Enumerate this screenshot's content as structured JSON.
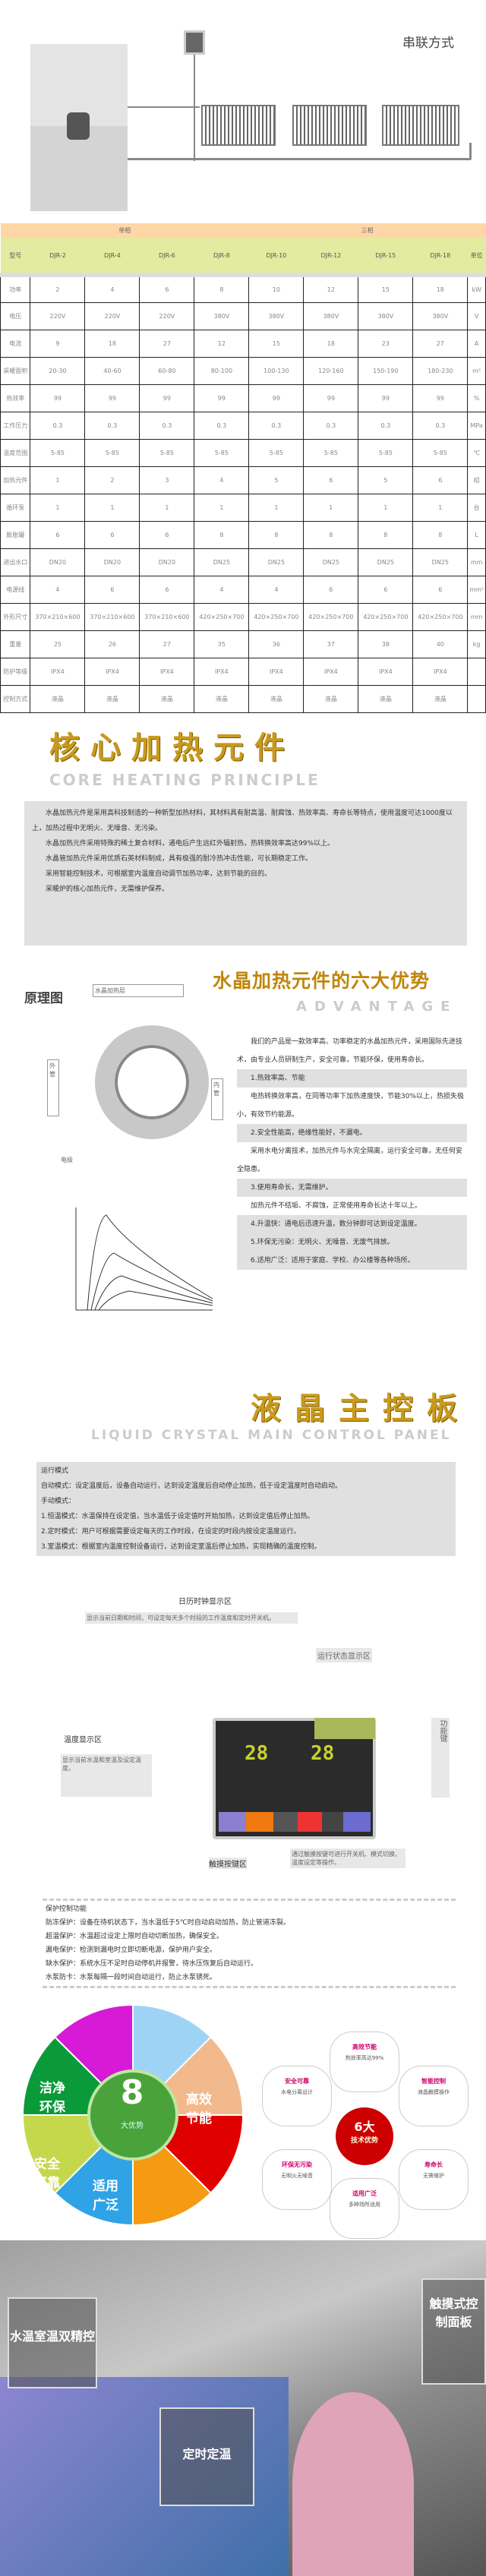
{
  "diagram": {
    "title": "串联方式"
  },
  "table": {
    "group_headers": [
      "单相",
      "三相"
    ],
    "columns": [
      "型号",
      "DJR-2",
      "DJR-4",
      "DJR-6",
      "DJR-8",
      "DJR-10",
      "DJR-12",
      "DJR-15",
      "DJR-18",
      "单位"
    ],
    "rows": [
      [
        "功率",
        "2",
        "4",
        "6",
        "8",
        "10",
        "12",
        "15",
        "18",
        "kW"
      ],
      [
        "电压",
        "220V",
        "220V",
        "220V",
        "380V",
        "380V",
        "380V",
        "380V",
        "380V",
        "V"
      ],
      [
        "电流",
        "9",
        "18",
        "27",
        "12",
        "15",
        "18",
        "23",
        "27",
        "A"
      ],
      [
        "采暖面积",
        "20-30",
        "40-60",
        "60-80",
        "80-100",
        "100-130",
        "120-160",
        "150-190",
        "180-230",
        "m²"
      ],
      [
        "热效率",
        "99",
        "99",
        "99",
        "99",
        "99",
        "99",
        "99",
        "99",
        "%"
      ],
      [
        "工作压力",
        "0.3",
        "0.3",
        "0.3",
        "0.3",
        "0.3",
        "0.3",
        "0.3",
        "0.3",
        "MPa"
      ],
      [
        "温度范围",
        "5-85",
        "5-85",
        "5-85",
        "5-85",
        "5-85",
        "5-85",
        "5-85",
        "5-85",
        "℃"
      ],
      [
        "加热元件",
        "1",
        "2",
        "3",
        "4",
        "5",
        "6",
        "5",
        "6",
        "组"
      ],
      [
        "循环泵",
        "1",
        "1",
        "1",
        "1",
        "1",
        "1",
        "1",
        "1",
        "台"
      ],
      [
        "膨胀罐",
        "6",
        "6",
        "6",
        "8",
        "8",
        "8",
        "8",
        "8",
        "L"
      ],
      [
        "进出水口",
        "DN20",
        "DN20",
        "DN20",
        "DN25",
        "DN25",
        "DN25",
        "DN25",
        "DN25",
        "mm"
      ],
      [
        "电源线",
        "4",
        "6",
        "6",
        "4",
        "4",
        "6",
        "6",
        "6",
        "mm²"
      ],
      [
        "外形尺寸",
        "370×210×600",
        "370×210×600",
        "370×210×600",
        "420×250×700",
        "420×250×700",
        "420×250×700",
        "420×250×700",
        "420×250×700",
        "mm"
      ],
      [
        "重量",
        "25",
        "26",
        "27",
        "35",
        "36",
        "37",
        "38",
        "40",
        "kg"
      ],
      [
        "防护等级",
        "IPX4",
        "IPX4",
        "IPX4",
        "IPX4",
        "IPX4",
        "IPX4",
        "IPX4",
        "IPX4",
        ""
      ],
      [
        "控制方式",
        "液晶",
        "液晶",
        "液晶",
        "液晶",
        "液晶",
        "液晶",
        "液晶",
        "液晶",
        ""
      ]
    ]
  },
  "core": {
    "title": "核心加热元件",
    "subtitle": "CORE HEATING PRINCIPLE",
    "paragraphs": [
      "水晶加热元件是采用高科技制造的一种新型加热材料，其材料具有耐高温、耐腐蚀、热效率高、寿命长等特点，使用温度可达1000度以上，加热过程中无明火、无噪音、无污染。",
      "水晶加热元件采用特殊的稀土复合材料，通电后产生远红外辐射热，热转换效率高达99%以上。",
      "水晶管加热元件采用优质石英材料制成，具有极强的耐冷热冲击性能，可长期稳定工作。",
      "采用智能控制技术，可根据室内温度自动调节加热功率，达到节能的目的。",
      "采暖炉的核心加热元件，无需维护保养。"
    ]
  },
  "principle": {
    "title": "原理图",
    "labels": [
      "水晶加热层",
      "外管",
      "内管",
      "电极"
    ]
  },
  "advantage": {
    "title": "水晶加热元件的六大优势",
    "subtitle": "ADVANTAGE",
    "paragraphs": [
      {
        "text": "我们的产品是一款效率高、功率稳定的水晶加热元件，采用国际先进技术，由专业人员研制生产，安全可靠，节能环保，使用寿命长。",
        "hl": false
      },
      {
        "text": "1.热效率高、节能",
        "hl": true
      },
      {
        "text": "电热转换效率高，在同等功率下加热速度快，节能30%以上，热损失极小，有效节约能源。",
        "hl": false
      },
      {
        "text": "2.安全性能高，绝缘性能好，不漏电。",
        "hl": true
      },
      {
        "text": "采用水电分离技术，加热元件与水完全隔离，运行安全可靠，无任何安全隐患。",
        "hl": false
      },
      {
        "text": "3.使用寿命长，无需维护。",
        "hl": true
      },
      {
        "text": "加热元件不结垢、不腐蚀，正常使用寿命长达十年以上。",
        "hl": false
      },
      {
        "text": "4.升温快：通电后迅速升温，数分钟即可达到设定温度。",
        "hl": true
      },
      {
        "text": "5.环保无污染：无明火、无噪音、无废气排放。",
        "hl": true
      },
      {
        "text": "6.适用广泛：适用于家庭、学校、办公楼等各种场所。",
        "hl": true
      }
    ]
  },
  "lcd": {
    "title": "液晶主控板",
    "subtitle": "LIQUID CRYSTAL MAIN CONTROL PANEL",
    "lines": [
      "运行模式",
      "自动模式：设定温度后，设备自动运行，达到设定温度后自动停止加热，低于设定温度时自动启动。",
      "手动模式：",
      "1.恒温模式：水温保持在设定值，当水温低于设定值时开始加热，达到设定值后停止加热。",
      "2.定时模式：用户可根据需要设定每天的工作时段，在设定的时段内按设定温度运行。",
      "3.室温模式：根据室内温度控制设备运行，达到设定室温后停止加热，实现精确的温度控制。"
    ],
    "callouts": {
      "clock": "日历时钟显示区",
      "clock_desc": "显示当前日期和时间，可设定每天多个时段的工作温度和定时开关机。",
      "status": "运行状态显示区",
      "left": "温度显示区",
      "left_desc": "显示当前水温和室温及设定温度。",
      "right": "功能键",
      "bottom": "触摸按键区",
      "bottom_desc": "通过触摸按键可进行开关机、模式切换、温度设定等操作。"
    },
    "display": {
      "water": "28",
      "room": "28"
    }
  },
  "protect": {
    "lines": [
      "保护控制功能",
      "防冻保护：设备在待机状态下，当水温低于5℃时自动启动加热，防止管道冻裂。",
      "超温保护：水温超过设定上限时自动切断加热，确保安全。",
      "漏电保护：检测到漏电时立即切断电源，保护用户安全。",
      "缺水保护：系统水压不足时自动停机并报警，待水压恢复后自动运行。",
      "水泵防卡：水泵每隔一段时间自动运行，防止水泵锈死。"
    ]
  },
  "features": {
    "center": "8",
    "center_sub": "大优势",
    "items": [
      "洁净环保",
      "高效节能",
      "安全可靠",
      "适用广泛"
    ],
    "six": {
      "center": "6大",
      "center_sub": "技术优势",
      "items": [
        {
          "t": "高效节能",
          "d": "热效率高达99%"
        },
        {
          "t": "安全可靠",
          "d": "水电分离设计"
        },
        {
          "t": "智能控制",
          "d": "液晶触摸操作"
        },
        {
          "t": "环保无污染",
          "d": "无明火无噪音"
        },
        {
          "t": "寿命长",
          "d": "无需维护"
        },
        {
          "t": "适用广泛",
          "d": "多种场所适用"
        }
      ]
    },
    "colors": [
      "#9fd3f5",
      "#f2b98c",
      "#e00000",
      "#f59a12",
      "#2fa3e6",
      "#c5d84b",
      "#0a9a3a",
      "#d61ad6"
    ]
  },
  "photo": {
    "left": "水温室温双精控",
    "center": "定时定温",
    "right": "触摸式控制面板"
  }
}
